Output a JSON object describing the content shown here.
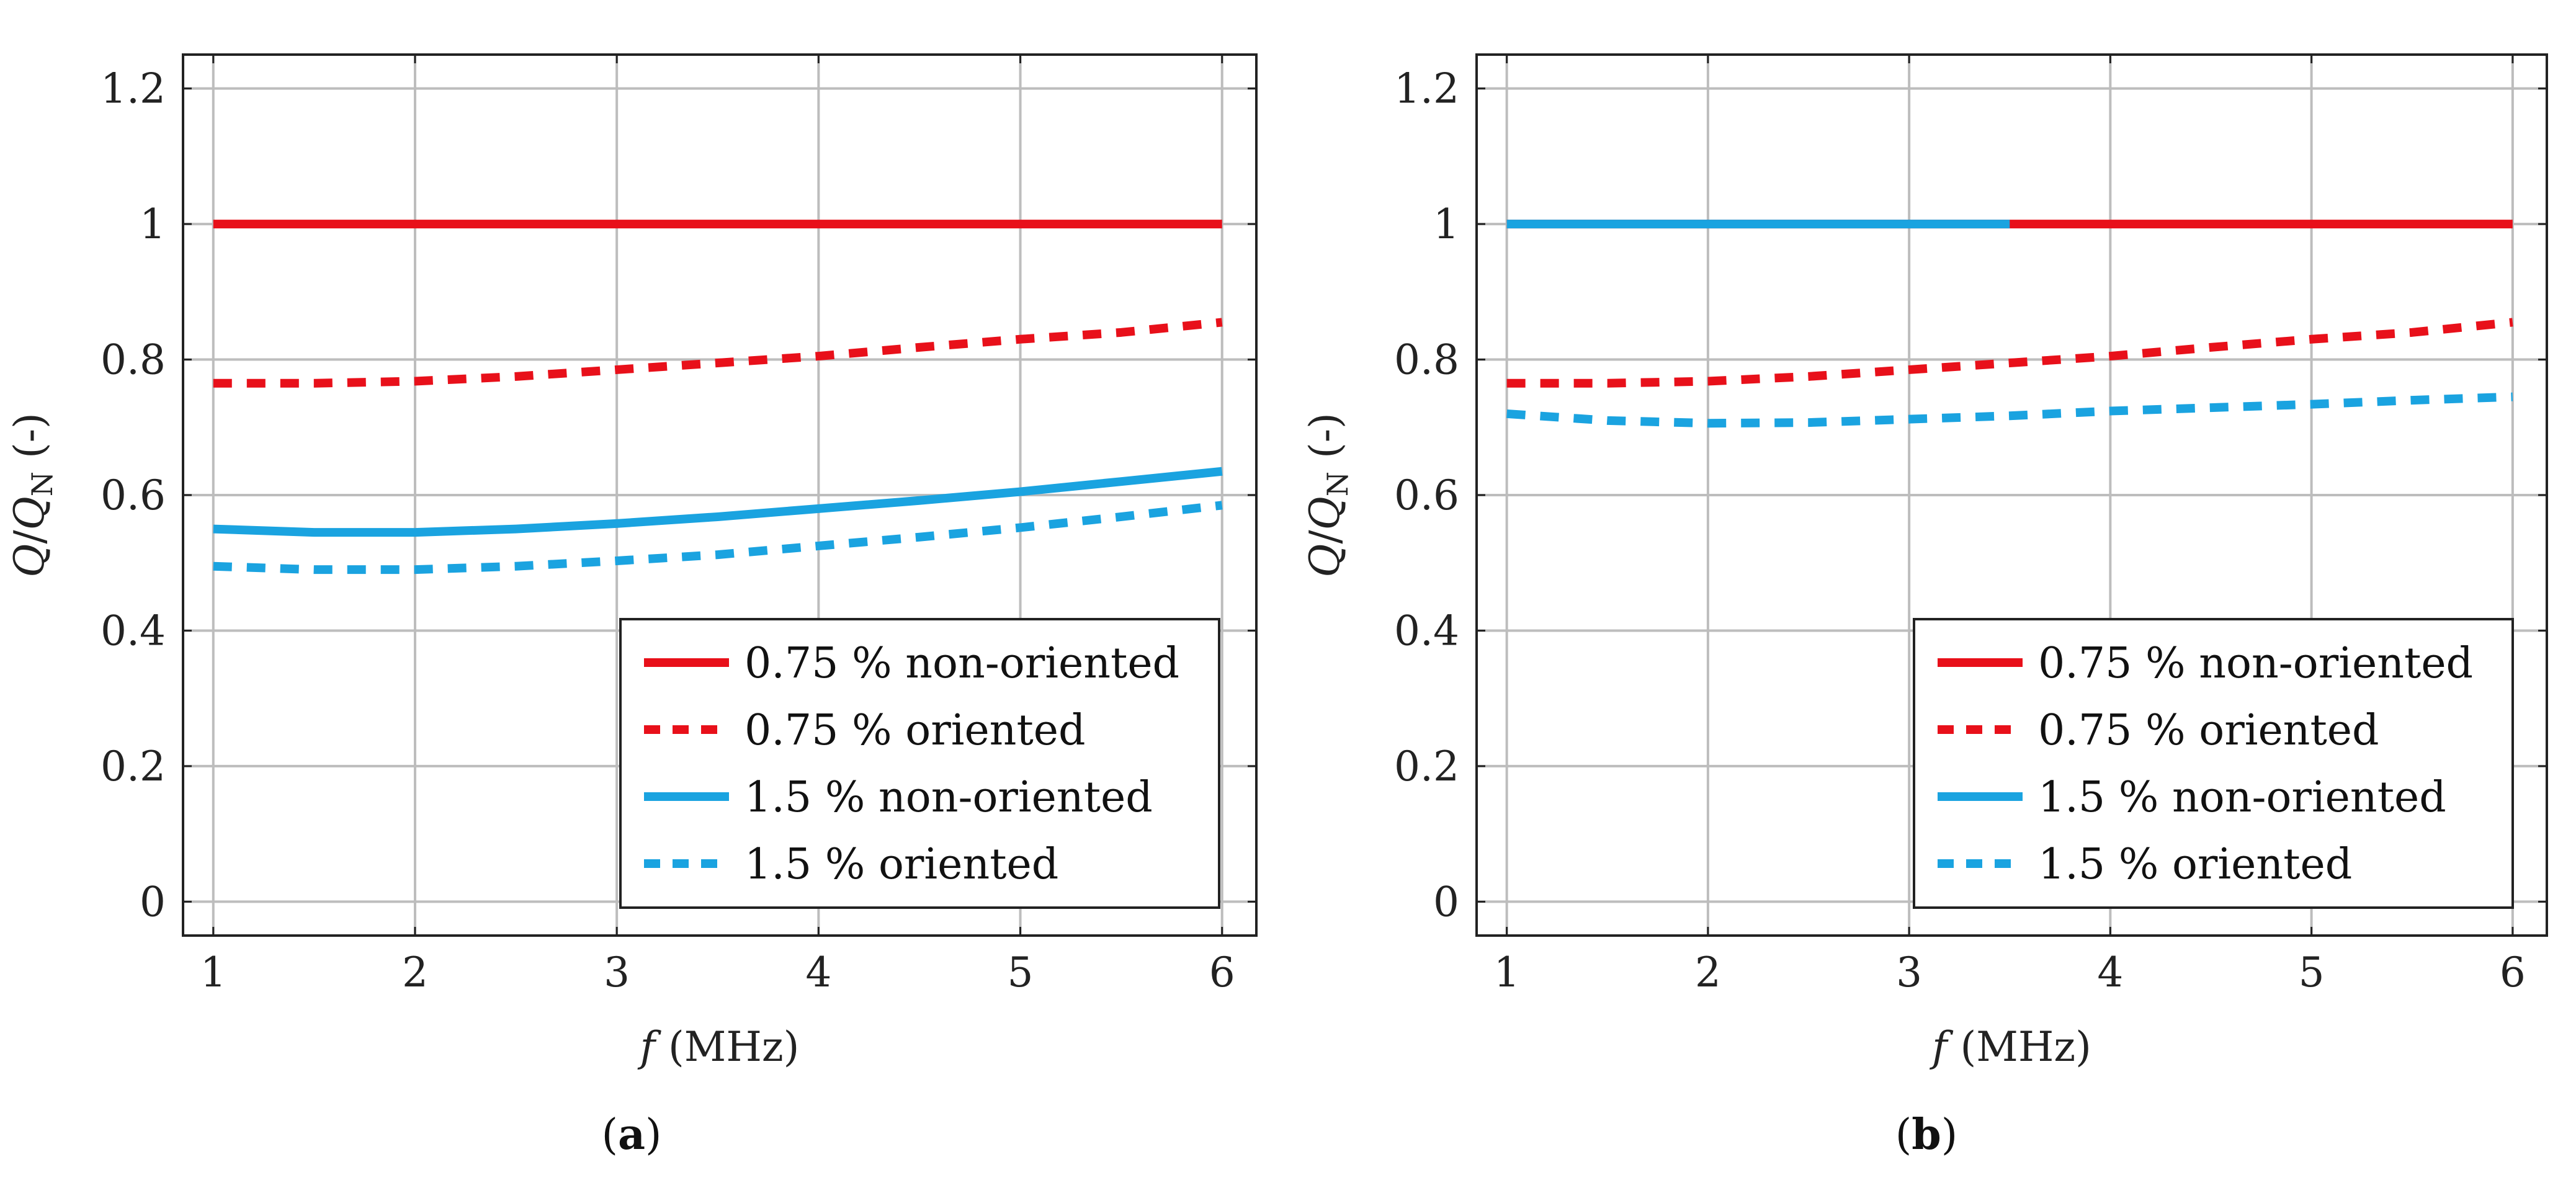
{
  "chart_data": [
    {
      "type": "line",
      "panel_label": "a",
      "xlabel_var": "f",
      "xlabel_unit": "(MHz)",
      "ylabel_num": "Q",
      "ylabel_den": "Q",
      "ylabel_sub": "N",
      "ylabel_unit": "(-)",
      "xlim": [
        0.85,
        6.17
      ],
      "ylim": [
        -0.05,
        1.25
      ],
      "xticks": [
        1,
        2,
        3,
        4,
        5,
        6
      ],
      "yticks": [
        0,
        0.2,
        0.4,
        0.6,
        0.8,
        1,
        1.2
      ],
      "ytick_labels": [
        "0",
        "0.2",
        "0.4",
        "0.6",
        "0.8",
        "1",
        "1.2"
      ],
      "grid": true,
      "legend_position": "bottom-right",
      "series": [
        {
          "name": "0.75 % non-oriented",
          "color": "#e8101a",
          "style": "solid",
          "x": [
            1,
            6
          ],
          "y": [
            1.0,
            1.0
          ]
        },
        {
          "name": "0.75 % oriented",
          "color": "#e8101a",
          "style": "dashed",
          "x": [
            1,
            1.5,
            2,
            2.5,
            3,
            3.5,
            4,
            4.5,
            5,
            5.5,
            6
          ],
          "y": [
            0.765,
            0.765,
            0.768,
            0.775,
            0.785,
            0.795,
            0.805,
            0.818,
            0.83,
            0.84,
            0.855
          ]
        },
        {
          "name": "1.5 % non-oriented",
          "color": "#1aa3e0",
          "style": "solid",
          "x": [
            1,
            1.5,
            2,
            2.5,
            3,
            3.5,
            4,
            4.5,
            5,
            5.5,
            6
          ],
          "y": [
            0.55,
            0.545,
            0.545,
            0.55,
            0.558,
            0.568,
            0.58,
            0.592,
            0.605,
            0.62,
            0.635
          ]
        },
        {
          "name": "1.5 % oriented",
          "color": "#1aa3e0",
          "style": "dashed",
          "x": [
            1,
            1.5,
            2,
            2.5,
            3,
            3.5,
            4,
            4.5,
            5,
            5.5,
            6
          ],
          "y": [
            0.495,
            0.49,
            0.49,
            0.495,
            0.503,
            0.512,
            0.525,
            0.538,
            0.552,
            0.568,
            0.585
          ]
        }
      ]
    },
    {
      "type": "line",
      "panel_label": "b",
      "xlabel_var": "f",
      "xlabel_unit": "(MHz)",
      "ylabel_num": "Q",
      "ylabel_den": "Q",
      "ylabel_sub": "N",
      "ylabel_unit": "(-)",
      "xlim": [
        0.85,
        6.17
      ],
      "ylim": [
        -0.05,
        1.25
      ],
      "xticks": [
        1,
        2,
        3,
        4,
        5,
        6
      ],
      "yticks": [
        0,
        0.2,
        0.4,
        0.6,
        0.8,
        1,
        1.2
      ],
      "ytick_labels": [
        "0",
        "0.2",
        "0.4",
        "0.6",
        "0.8",
        "1",
        "1.2"
      ],
      "grid": true,
      "legend_position": "bottom-right",
      "series": [
        {
          "name": "0.75 % non-oriented",
          "color": "#e8101a",
          "style": "solid",
          "x": [
            1,
            6
          ],
          "y": [
            1.0,
            1.0
          ]
        },
        {
          "name": "0.75 % oriented",
          "color": "#e8101a",
          "style": "dashed",
          "x": [
            1,
            1.5,
            2,
            2.5,
            3,
            3.5,
            4,
            4.5,
            5,
            5.5,
            6
          ],
          "y": [
            0.765,
            0.765,
            0.768,
            0.775,
            0.785,
            0.795,
            0.805,
            0.818,
            0.83,
            0.84,
            0.855
          ]
        },
        {
          "name": "1.5 % non-oriented",
          "color": "#1aa3e0",
          "style": "solid",
          "x": [
            1,
            3.5
          ],
          "y": [
            1.0,
            1.0
          ]
        },
        {
          "name": "1.5 % oriented",
          "color": "#1aa3e0",
          "style": "dashed",
          "x": [
            1,
            1.5,
            2,
            2.5,
            3,
            3.5,
            4,
            4.5,
            5,
            5.5,
            6
          ],
          "y": [
            0.72,
            0.71,
            0.706,
            0.707,
            0.712,
            0.717,
            0.724,
            0.729,
            0.734,
            0.74,
            0.745
          ]
        }
      ]
    }
  ]
}
